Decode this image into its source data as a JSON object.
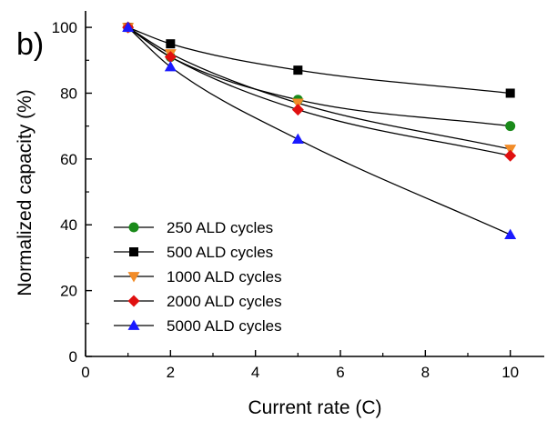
{
  "chart_data": {
    "type": "line",
    "panel_label": "b)",
    "xlabel": "Current rate (C)",
    "ylabel": "Normalized capacity (%)",
    "xlim": [
      0,
      10.8
    ],
    "ylim": [
      0,
      105
    ],
    "xticks": [
      0,
      2,
      4,
      6,
      8,
      10
    ],
    "yticks": [
      0,
      20,
      40,
      60,
      80,
      100
    ],
    "grid": false,
    "legend_position": "bottom-left",
    "x": [
      1,
      2,
      5,
      10
    ],
    "series": [
      {
        "name": "250 ALD cycles",
        "marker": "circle",
        "color": "#1a8a1a",
        "values": [
          100,
          91,
          78,
          70
        ]
      },
      {
        "name": "500 ALD cycles",
        "marker": "square",
        "color": "#000000",
        "values": [
          100,
          95,
          87,
          80
        ]
      },
      {
        "name": "1000 ALD cycles",
        "marker": "triangle-down",
        "color": "#f28c28",
        "values": [
          100,
          92,
          77,
          63
        ]
      },
      {
        "name": "2000 ALD cycles",
        "marker": "diamond",
        "color": "#e01010",
        "values": [
          100,
          91,
          75,
          61
        ]
      },
      {
        "name": "5000 ALD cycles",
        "marker": "triangle-up",
        "color": "#1a1aff",
        "values": [
          100,
          88,
          66,
          37
        ]
      }
    ]
  }
}
